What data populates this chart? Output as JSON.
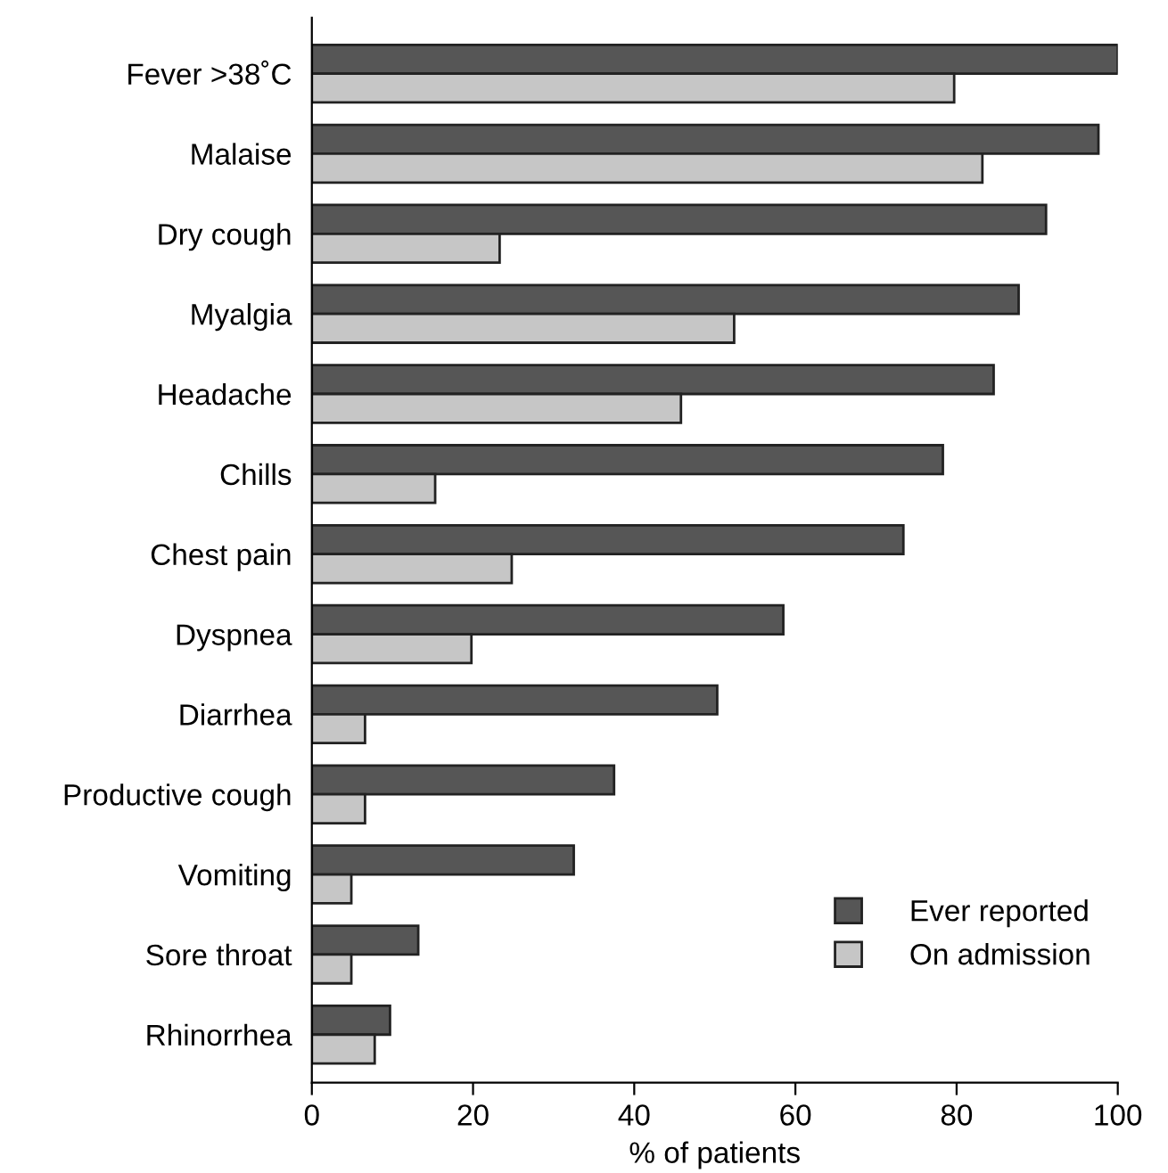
{
  "chart_data": {
    "type": "bar",
    "orientation": "horizontal",
    "xlabel": "% of patients",
    "categories": [
      "Fever >38˚C",
      "Malaise",
      "Dry cough",
      "Myalgia",
      "Headache",
      "Chills",
      "Chest pain",
      "Dyspnea",
      "Diarrhea",
      "Productive cough",
      "Vomiting",
      "Sore throat",
      "Rhinorrhea"
    ],
    "series": [
      {
        "name": "Ever reported",
        "color": "#565656",
        "values": [
          100,
          97.6,
          91.1,
          87.7,
          84.6,
          78.3,
          73.4,
          58.5,
          50.3,
          37.5,
          32.5,
          13.2,
          9.7
        ]
      },
      {
        "name": "On admission",
        "color": "#c6c6c6",
        "values": [
          79.7,
          83.2,
          23.3,
          52.4,
          45.8,
          15.3,
          24.8,
          19.8,
          6.6,
          6.6,
          4.9,
          4.9,
          7.8
        ]
      }
    ],
    "xlim": [
      0,
      100
    ],
    "xticks": [
      0,
      20,
      40,
      60,
      80,
      100
    ],
    "grid": false,
    "legend": "bottom right"
  }
}
